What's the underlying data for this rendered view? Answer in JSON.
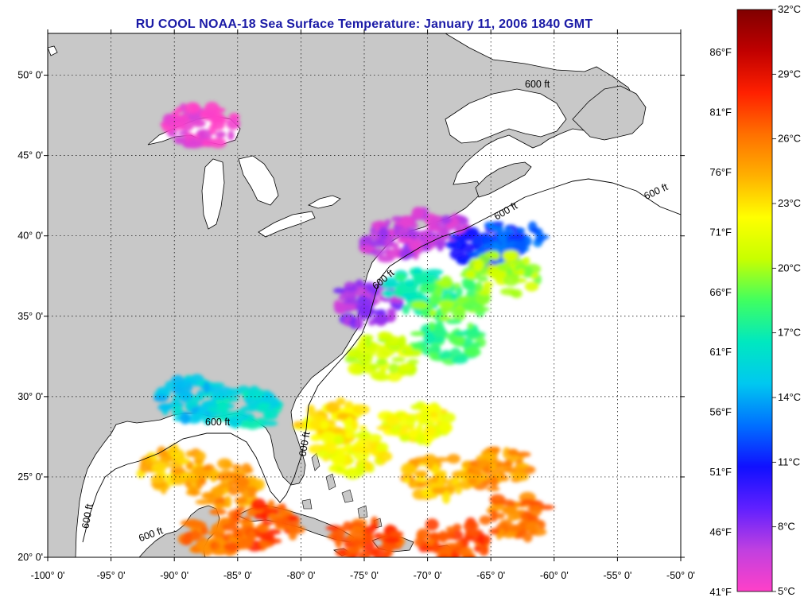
{
  "title": "RU COOL  NOAA-18  Sea Surface Temperature:  January 11, 2006 1840 GMT",
  "axes": {
    "x_ticks": [
      "-100° 0'",
      "-95° 0'",
      "-90° 0'",
      "-85° 0'",
      "-80° 0'",
      "-75° 0'",
      "-70° 0'",
      "-65° 0'",
      "-60° 0'",
      "-55° 0'",
      "-50° 0'"
    ],
    "x_values": [
      -100,
      -95,
      -90,
      -85,
      -80,
      -75,
      -70,
      -65,
      -60,
      -55,
      -50
    ],
    "y_ticks": [
      "50° 0'",
      "45° 0'",
      "40° 0'",
      "35° 0'",
      "30° 0'",
      "25° 0'",
      "20° 0'"
    ],
    "y_values": [
      50,
      45,
      40,
      35,
      30,
      25,
      20
    ],
    "lon_range": [
      -100,
      -50
    ],
    "lat_range": [
      20,
      52.6
    ],
    "grid": true
  },
  "isobath_label": "600 ft",
  "colorbar": {
    "fahrenheit": [
      "86°F",
      "81°F",
      "76°F",
      "71°F",
      "66°F",
      "61°F",
      "56°F",
      "51°F",
      "46°F",
      "41°F"
    ],
    "celsius": [
      "32°C",
      "29°C",
      "26°C",
      "23°C",
      "20°C",
      "17°C",
      "14°C",
      "11°C",
      "8°C",
      "5°C"
    ],
    "range_c": [
      5,
      32
    ],
    "stops": [
      "#ff40c8",
      "#c040e0",
      "#6020ff",
      "#1010ff",
      "#0070ff",
      "#00c8f0",
      "#00e8c0",
      "#40ff60",
      "#c8ff00",
      "#ffff00",
      "#ffb000",
      "#ff7000",
      "#ff2000",
      "#c00000",
      "#800000"
    ]
  },
  "colors": {
    "land": "#c8c8c8",
    "ocean_no_data": "#ffffff",
    "title": "#1a1aa6"
  },
  "sst_clusters": [
    {
      "lon": -87.8,
      "lat": 46.9,
      "temp_c": 5.5,
      "note": "Lake Superior west"
    },
    {
      "lon": -72.5,
      "lat": 39.8,
      "temp_c": 7
    },
    {
      "lon": -69.5,
      "lat": 40.3,
      "temp_c": 6.5
    },
    {
      "lon": -65.5,
      "lat": 39.3,
      "temp_c": 11
    },
    {
      "lon": -63.5,
      "lat": 39.6,
      "temp_c": 12
    },
    {
      "lon": -74.8,
      "lat": 35.8,
      "temp_c": 7.5
    },
    {
      "lon": -70.5,
      "lat": 36.5,
      "temp_c": 17
    },
    {
      "lon": -68,
      "lat": 36,
      "temp_c": 19
    },
    {
      "lon": -64,
      "lat": 37.6,
      "temp_c": 20
    },
    {
      "lon": -68.5,
      "lat": 33.5,
      "temp_c": 18
    },
    {
      "lon": -73.5,
      "lat": 32.5,
      "temp_c": 21
    },
    {
      "lon": -77.5,
      "lat": 28.5,
      "temp_c": 23
    },
    {
      "lon": -76,
      "lat": 26.5,
      "temp_c": 22
    },
    {
      "lon": -71,
      "lat": 28.5,
      "temp_c": 22
    },
    {
      "lon": -69,
      "lat": 25,
      "temp_c": 24
    },
    {
      "lon": -64.5,
      "lat": 25.5,
      "temp_c": 25
    },
    {
      "lon": -88.5,
      "lat": 29.8,
      "temp_c": 15
    },
    {
      "lon": -84.5,
      "lat": 29.2,
      "temp_c": 16
    },
    {
      "lon": -90,
      "lat": 25.5,
      "temp_c": 24
    },
    {
      "lon": -86,
      "lat": 24.5,
      "temp_c": 25
    },
    {
      "lon": -86.5,
      "lat": 21.5,
      "temp_c": 26
    },
    {
      "lon": -83,
      "lat": 22,
      "temp_c": 27
    },
    {
      "lon": -75,
      "lat": 21.2,
      "temp_c": 27
    },
    {
      "lon": -68,
      "lat": 21,
      "temp_c": 27
    },
    {
      "lon": -63,
      "lat": 22.5,
      "temp_c": 26
    }
  ]
}
